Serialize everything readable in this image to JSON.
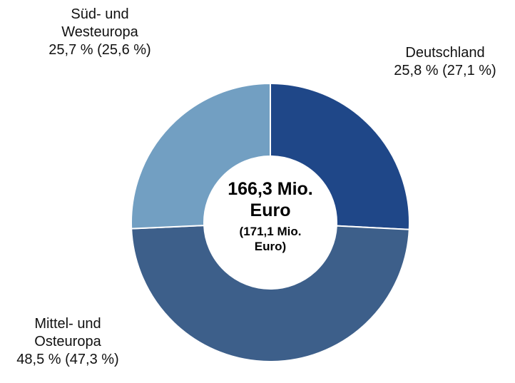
{
  "chart_data": {
    "type": "donut",
    "categories": [
      "Deutschland",
      "Mittel- und Osteuropa",
      "Süd- und Westeuropa"
    ],
    "values": [
      25.8,
      48.5,
      25.7
    ],
    "value_labels": [
      "25,8 % (27,1 %)",
      "48,5 % (47,3 %)",
      "25,7 % (25,6 %)"
    ],
    "colors": [
      "#1f4788",
      "#3d5f8a",
      "#729fc2"
    ],
    "center_label": "166,3 Mio. Euro",
    "center_sublabel": "(171,1 Mio. Euro)"
  }
}
